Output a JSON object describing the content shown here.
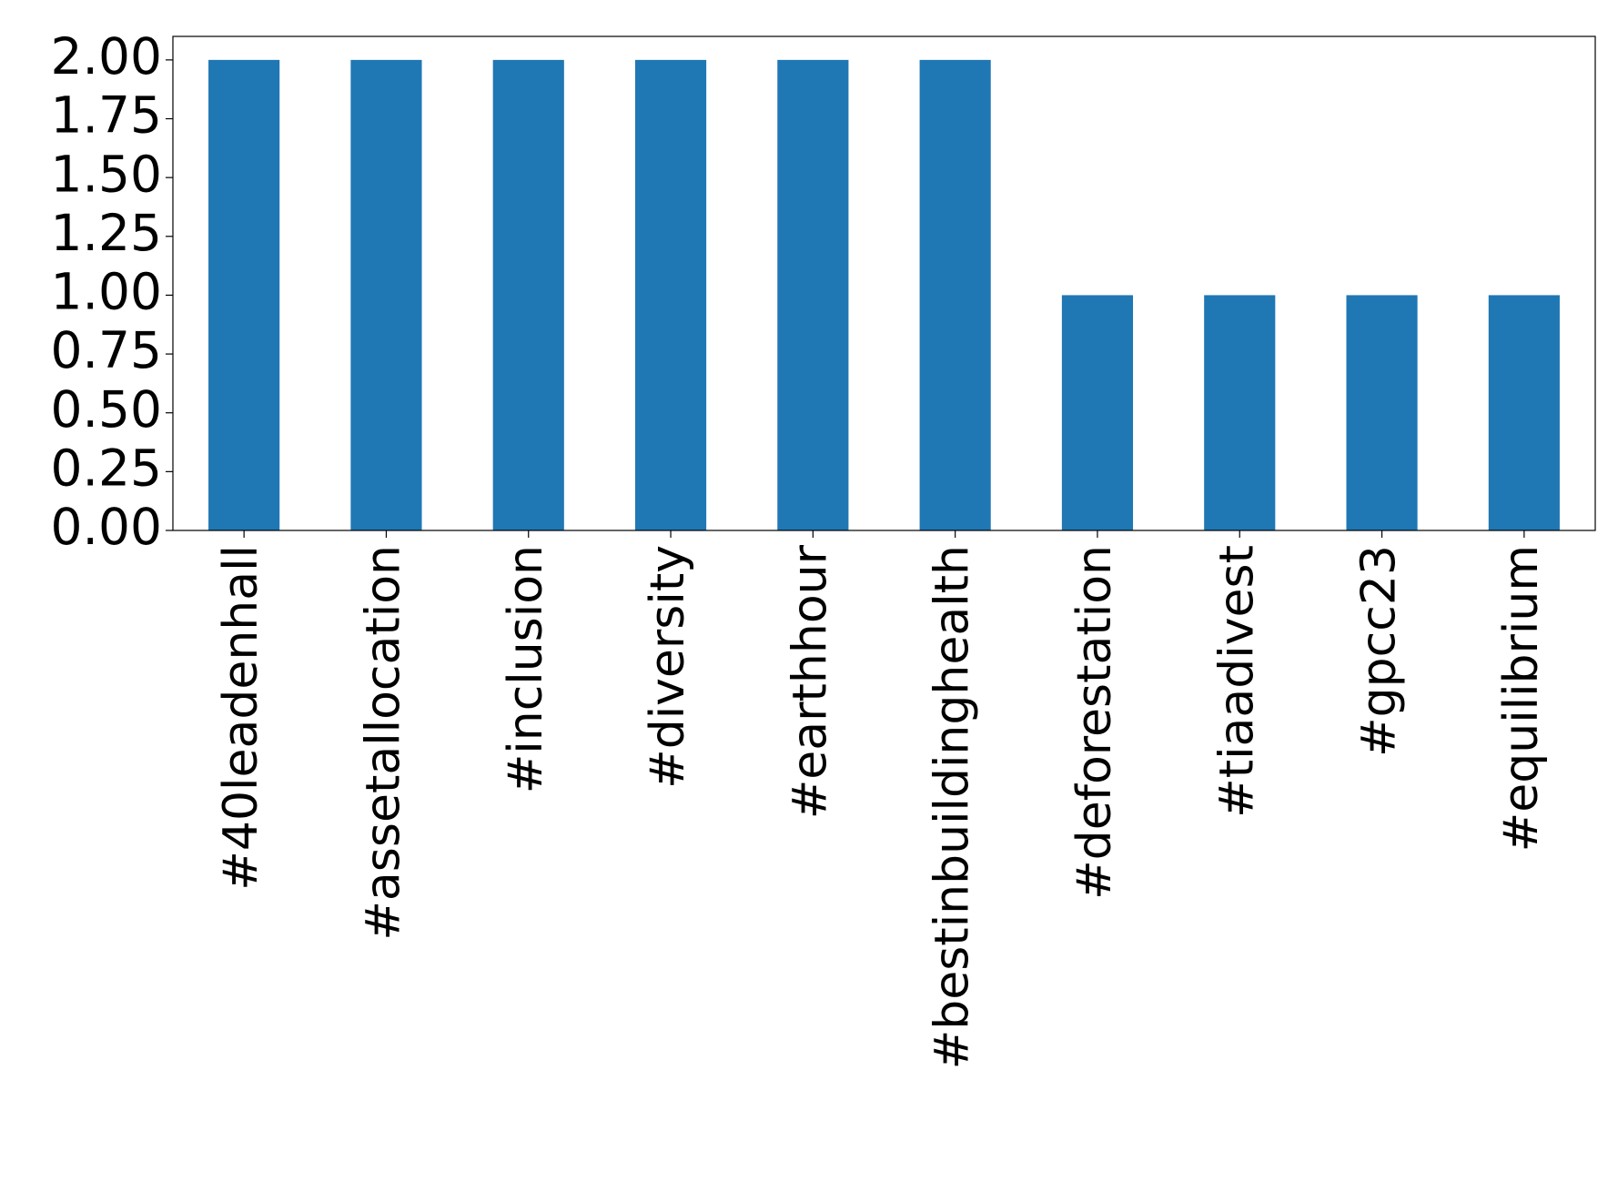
{
  "chart_data": {
    "type": "bar",
    "categories": [
      "#40leadenhall",
      "#assetallocation",
      "#inclusion",
      "#diversity",
      "#earthhour",
      "#bestinbuildinghealth",
      "#deforestation",
      "#tiaadivest",
      "#gpcc23",
      "#equilibrium"
    ],
    "values": [
      2,
      2,
      2,
      2,
      2,
      2,
      1,
      1,
      1,
      1
    ],
    "color": "#1f77b4",
    "ylim": [
      0,
      2.1
    ],
    "yticks": [
      {
        "value": 0,
        "label": "0.00"
      },
      {
        "value": 0.25,
        "label": "0.25"
      },
      {
        "value": 0.5,
        "label": "0.50"
      },
      {
        "value": 0.75,
        "label": "0.75"
      },
      {
        "value": 1,
        "label": "1.00"
      },
      {
        "value": 1.25,
        "label": "1.25"
      },
      {
        "value": 1.5,
        "label": "1.50"
      },
      {
        "value": 1.75,
        "label": "1.75"
      },
      {
        "value": 2,
        "label": "2.00"
      }
    ],
    "grid": false
  }
}
